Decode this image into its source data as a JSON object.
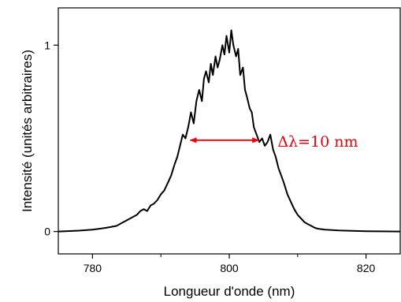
{
  "chart_data": {
    "type": "line",
    "title": "",
    "xlabel": "Longueur d'onde (nm)",
    "ylabel": "Intensité (unités arbitraires)",
    "xlim": [
      775,
      825
    ],
    "ylim": [
      -0.12,
      1.2
    ],
    "x_ticks": [
      {
        "value": 780,
        "label": "780"
      },
      {
        "value": 800,
        "label": "800"
      },
      {
        "value": 820,
        "label": "820"
      }
    ],
    "x_minor_ticks": [
      790,
      810
    ],
    "y_ticks": [
      {
        "value": 0,
        "label": "0"
      },
      {
        "value": 1,
        "label": "1"
      }
    ],
    "grid": false,
    "legend": "none",
    "colors": {
      "line": "#000000",
      "annotation": "#e8000b"
    },
    "series": [
      {
        "x": [
          775.0,
          778.0,
          780.0,
          782.0,
          783.5,
          784.5,
          785.5,
          786.5,
          787.0,
          787.5,
          788.0,
          788.5,
          789.0,
          789.5,
          790.0,
          790.5,
          791.0,
          791.5,
          792.0,
          792.4,
          792.8,
          793.2,
          793.6,
          794.0,
          794.4,
          794.8,
          795.2,
          795.6,
          796.0,
          796.3,
          796.6,
          797.0,
          797.3,
          797.6,
          798.0,
          798.3,
          798.6,
          799.0,
          799.3,
          799.6,
          800.0,
          800.3,
          800.6,
          801.0,
          801.3,
          801.6,
          802.0,
          802.3,
          802.6,
          803.0,
          803.3,
          803.6,
          804.0,
          804.4,
          804.8,
          805.2,
          805.6,
          806.0,
          806.4,
          806.8,
          807.2,
          807.6,
          808.0,
          808.5,
          809.0,
          809.5,
          810.0,
          810.5,
          811.0,
          811.5,
          812.0,
          812.5,
          813.0,
          814.0,
          815.0,
          816.0,
          817.0,
          818.0,
          820.0,
          822.0,
          825.0
        ],
        "y": [
          0.0,
          0.005,
          0.01,
          0.02,
          0.03,
          0.05,
          0.07,
          0.09,
          0.11,
          0.12,
          0.11,
          0.14,
          0.15,
          0.17,
          0.2,
          0.22,
          0.26,
          0.3,
          0.36,
          0.4,
          0.46,
          0.52,
          0.5,
          0.56,
          0.64,
          0.58,
          0.7,
          0.76,
          0.7,
          0.82,
          0.86,
          0.8,
          0.9,
          0.84,
          0.94,
          0.88,
          0.92,
          1.0,
          0.95,
          1.05,
          0.96,
          1.08,
          1.0,
          0.94,
          0.98,
          0.84,
          0.88,
          0.76,
          0.72,
          0.66,
          0.64,
          0.56,
          0.52,
          0.48,
          0.5,
          0.46,
          0.48,
          0.52,
          0.44,
          0.4,
          0.34,
          0.3,
          0.26,
          0.2,
          0.16,
          0.12,
          0.09,
          0.07,
          0.05,
          0.04,
          0.03,
          0.02,
          0.015,
          0.01,
          0.008,
          0.006,
          0.005,
          0.004,
          0.002,
          0.001,
          0.0
        ]
      }
    ],
    "annotations": [
      {
        "type": "double-arrow",
        "x_start": 794.3,
        "x_end": 804.3,
        "y": 0.49,
        "text": "Δλ=10 nm",
        "color": "#e8000b"
      }
    ]
  }
}
